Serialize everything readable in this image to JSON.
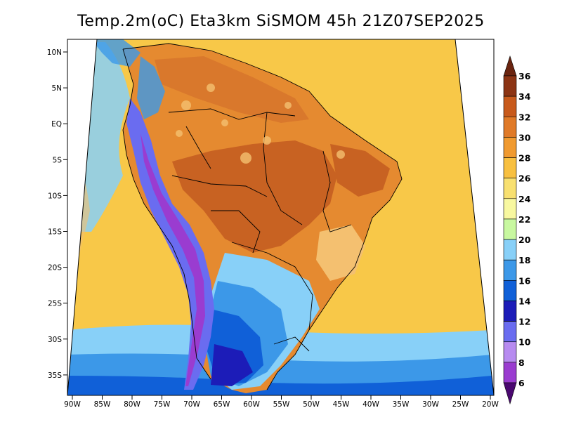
{
  "title": "Temp.2m(oC) Eta3km SiSMOM 45h 21Z07SEP2025",
  "axes": {
    "lat_labels": [
      "10N",
      "5N",
      "EQ",
      "5S",
      "10S",
      "15S",
      "20S",
      "25S",
      "30S",
      "35S"
    ],
    "lon_labels": [
      "90W",
      "85W",
      "80W",
      "75W",
      "70W",
      "65W",
      "60W",
      "55W",
      "50W",
      "45W",
      "40W",
      "35W",
      "30W",
      "25W",
      "20W"
    ]
  },
  "colorbar": {
    "labels": [
      "6",
      "8",
      "10",
      "12",
      "14",
      "16",
      "18",
      "20",
      "22",
      "24",
      "26",
      "28",
      "30",
      "32",
      "34",
      "36"
    ],
    "colors": [
      "#6a0fa0",
      "#9a3cd0",
      "#b78bf0",
      "#6a6cf0",
      "#1c1cb8",
      "#1060d8",
      "#3c98e8",
      "#88d0f8",
      "#c8f8a0",
      "#f8f8a0",
      "#f8e070",
      "#f8c040",
      "#f09a30",
      "#e07a28",
      "#c85a1c",
      "#8c3414"
    ],
    "low_arrow_color": "#4a0870",
    "high_arrow_color": "#6a2410"
  },
  "map": {
    "ocean_color": "#f8c848",
    "cold_ocean_colors": [
      "#88d0f8",
      "#3c98e8",
      "#1060d8"
    ],
    "land_colors": [
      "#e58a30",
      "#d9782c",
      "#c86222",
      "#f0a040",
      "#f4c070"
    ]
  }
}
